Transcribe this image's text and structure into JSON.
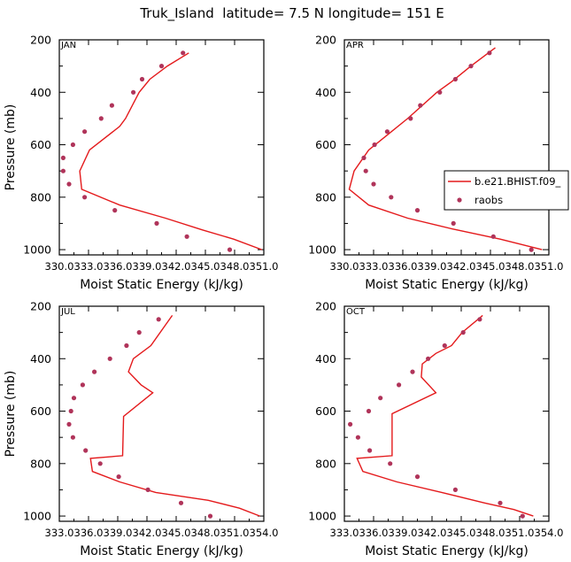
{
  "title": "Truk_Island  latitude= 7.5 N longitude= 151 E",
  "legend": {
    "model_label": "b.e21.BHIST.f09_",
    "obs_label": "raobs"
  },
  "colors": {
    "model": "#e41a1c",
    "obs": "#b0345a",
    "axis": "#000000"
  },
  "chart_data": [
    {
      "type": "line",
      "panel": "JAN",
      "xlabel": "Moist Static Energy (kJ/kg)",
      "ylabel": "Pressure (mb)",
      "xlim": [
        330.0,
        351.0
      ],
      "ylim": [
        1020,
        200
      ],
      "xticks": [
        330.0,
        333.0,
        336.0,
        339.0,
        342.0,
        345.0,
        348.0,
        351.0
      ],
      "xtick_labels": [
        "330.0",
        "333.0",
        "336.0",
        "339.0",
        "342.0",
        "345.0",
        "348.0",
        "351.0"
      ],
      "yticks": [
        200,
        400,
        600,
        800,
        1000
      ],
      "ytick_labels": [
        "200",
        "400",
        "600",
        "800",
        "1000"
      ],
      "legend": false,
      "series": [
        {
          "kind": "line",
          "points": [
            [
              343.3,
              250
            ],
            [
              341.1,
              300
            ],
            [
              339.3,
              350
            ],
            [
              338.2,
              400
            ],
            [
              337.5,
              450
            ],
            [
              336.8,
              500
            ],
            [
              336.2,
              530
            ],
            [
              333.1,
              620
            ],
            [
              332.1,
              700
            ],
            [
              332.3,
              770
            ],
            [
              336.2,
              830
            ],
            [
              340.9,
              880
            ],
            [
              344.7,
              925
            ],
            [
              347.9,
              960
            ],
            [
              350.8,
              1000
            ]
          ]
        },
        {
          "kind": "scatter",
          "points": [
            [
              342.7,
              250
            ],
            [
              340.5,
              300
            ],
            [
              338.5,
              350
            ],
            [
              337.6,
              400
            ],
            [
              335.4,
              450
            ],
            [
              334.3,
              500
            ],
            [
              332.6,
              550
            ],
            [
              331.4,
              600
            ],
            [
              330.4,
              650
            ],
            [
              330.4,
              700
            ],
            [
              331.0,
              750
            ],
            [
              332.6,
              800
            ],
            [
              335.7,
              850
            ],
            [
              340.0,
              900
            ],
            [
              343.1,
              950
            ],
            [
              347.5,
              1000
            ]
          ]
        }
      ]
    },
    {
      "type": "line",
      "panel": "APR",
      "xlabel": "Moist Static Energy (kJ/kg)",
      "ylabel": "",
      "xlim": [
        330.0,
        351.0
      ],
      "ylim": [
        1020,
        200
      ],
      "xticks": [
        330.0,
        333.0,
        336.0,
        339.0,
        342.0,
        345.0,
        348.0,
        351.0
      ],
      "xtick_labels": [
        "330.0",
        "333.0",
        "336.0",
        "339.0",
        "342.0",
        "345.0",
        "348.0",
        "351.0"
      ],
      "yticks": [
        200,
        400,
        600,
        800,
        1000
      ],
      "ytick_labels": [
        "200",
        "400",
        "600",
        "800",
        "1000"
      ],
      "legend": true,
      "series": [
        {
          "kind": "line",
          "points": [
            [
              345.5,
              230
            ],
            [
              343.0,
              300
            ],
            [
              341.0,
              360
            ],
            [
              339.5,
              400
            ],
            [
              338.0,
              450
            ],
            [
              336.5,
              500
            ],
            [
              334.5,
              560
            ],
            [
              332.5,
              620
            ],
            [
              331.0,
              700
            ],
            [
              330.5,
              770
            ],
            [
              332.5,
              830
            ],
            [
              336.5,
              880
            ],
            [
              341.0,
              920
            ],
            [
              346.0,
              960
            ],
            [
              350.3,
              1000
            ]
          ]
        },
        {
          "kind": "scatter",
          "points": [
            [
              344.9,
              250
            ],
            [
              343.0,
              300
            ],
            [
              341.4,
              350
            ],
            [
              339.8,
              400
            ],
            [
              337.8,
              450
            ],
            [
              336.8,
              500
            ],
            [
              334.4,
              550
            ],
            [
              333.1,
              600
            ],
            [
              332.0,
              650
            ],
            [
              332.2,
              700
            ],
            [
              333.0,
              750
            ],
            [
              334.8,
              800
            ],
            [
              337.5,
              850
            ],
            [
              341.2,
              900
            ],
            [
              345.3,
              950
            ],
            [
              349.2,
              1000
            ]
          ]
        }
      ]
    },
    {
      "type": "line",
      "panel": "JUL",
      "xlabel": "Moist Static Energy (kJ/kg)",
      "ylabel": "Pressure (mb)",
      "xlim": [
        333.0,
        354.0
      ],
      "ylim": [
        1020,
        200
      ],
      "xticks": [
        333.0,
        336.0,
        339.0,
        342.0,
        345.0,
        348.0,
        351.0,
        354.0
      ],
      "xtick_labels": [
        "333.0",
        "336.0",
        "339.0",
        "342.0",
        "345.0",
        "348.0",
        "351.0",
        "354.0"
      ],
      "yticks": [
        200,
        400,
        600,
        800,
        1000
      ],
      "ytick_labels": [
        "200",
        "400",
        "600",
        "800",
        "1000"
      ],
      "legend": false,
      "series": [
        {
          "kind": "line",
          "points": [
            [
              344.6,
              235
            ],
            [
              342.4,
              350
            ],
            [
              340.6,
              400
            ],
            [
              340.1,
              450
            ],
            [
              341.4,
              500
            ],
            [
              342.6,
              530
            ],
            [
              339.6,
              620
            ],
            [
              339.5,
              770
            ],
            [
              336.2,
              780
            ],
            [
              336.4,
              830
            ],
            [
              339.2,
              870
            ],
            [
              342.9,
              910
            ],
            [
              348.3,
              940
            ],
            [
              351.5,
              970
            ],
            [
              353.6,
              1000
            ]
          ]
        },
        {
          "kind": "scatter",
          "points": [
            [
              343.2,
              250
            ],
            [
              341.2,
              300
            ],
            [
              339.9,
              350
            ],
            [
              338.2,
              400
            ],
            [
              336.6,
              450
            ],
            [
              335.4,
              500
            ],
            [
              334.5,
              550
            ],
            [
              334.2,
              600
            ],
            [
              334.0,
              650
            ],
            [
              334.4,
              700
            ],
            [
              335.7,
              750
            ],
            [
              337.2,
              800
            ],
            [
              339.1,
              850
            ],
            [
              342.1,
              900
            ],
            [
              345.5,
              950
            ],
            [
              348.5,
              1000
            ]
          ]
        }
      ]
    },
    {
      "type": "line",
      "panel": "OCT",
      "xlabel": "Moist Static Energy (kJ/kg)",
      "ylabel": "",
      "xlim": [
        333.0,
        354.0
      ],
      "ylim": [
        1020,
        200
      ],
      "xticks": [
        333.0,
        336.0,
        339.0,
        342.0,
        345.0,
        348.0,
        351.0,
        354.0
      ],
      "xtick_labels": [
        "333.0",
        "336.0",
        "339.0",
        "342.0",
        "345.0",
        "348.0",
        "351.0",
        "354.0"
      ],
      "yticks": [
        200,
        400,
        600,
        800,
        1000
      ],
      "ytick_labels": [
        "200",
        "400",
        "600",
        "800",
        "1000"
      ],
      "legend": false,
      "series": [
        {
          "kind": "line",
          "points": [
            [
              347.2,
              235
            ],
            [
              345.1,
              300
            ],
            [
              344.0,
              350
            ],
            [
              342.4,
              380
            ],
            [
              341.0,
              420
            ],
            [
              340.9,
              470
            ],
            [
              342.4,
              530
            ],
            [
              337.9,
              610
            ],
            [
              337.9,
              770
            ],
            [
              334.3,
              780
            ],
            [
              334.9,
              830
            ],
            [
              338.4,
              870
            ],
            [
              343.0,
              910
            ],
            [
              347.4,
              950
            ],
            [
              350.4,
              975
            ],
            [
              352.4,
              1000
            ]
          ]
        },
        {
          "kind": "scatter",
          "points": [
            [
              346.9,
              250
            ],
            [
              345.2,
              300
            ],
            [
              343.3,
              350
            ],
            [
              341.6,
              400
            ],
            [
              340.0,
              450
            ],
            [
              338.6,
              500
            ],
            [
              336.7,
              550
            ],
            [
              335.5,
              600
            ],
            [
              333.6,
              650
            ],
            [
              334.4,
              700
            ],
            [
              335.6,
              750
            ],
            [
              337.7,
              800
            ],
            [
              340.5,
              850
            ],
            [
              344.4,
              900
            ],
            [
              349.0,
              950
            ],
            [
              351.3,
              1000
            ]
          ]
        }
      ]
    }
  ]
}
